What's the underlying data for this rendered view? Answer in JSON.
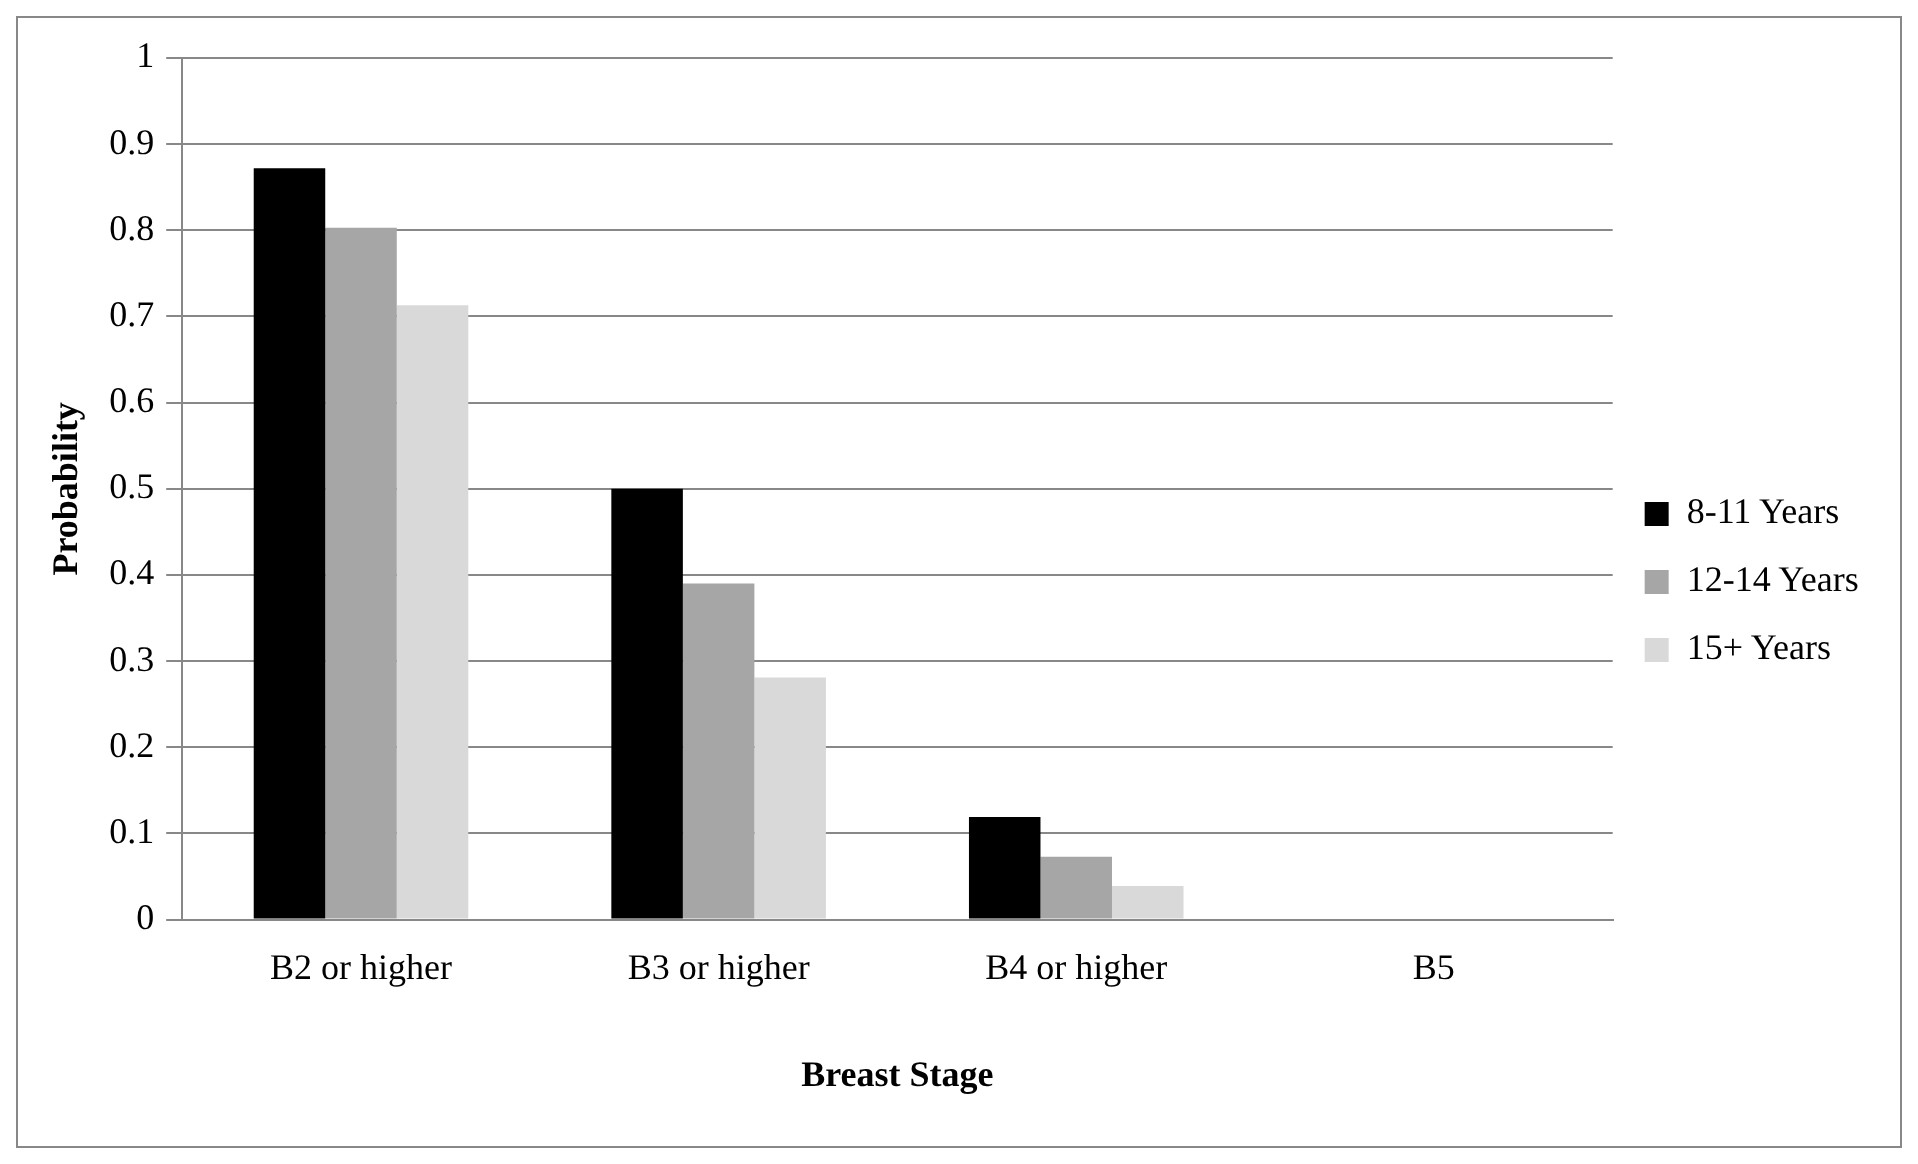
{
  "chart_data": {
    "type": "bar",
    "xlabel": "Breast Stage",
    "ylabel": "Probability",
    "categories": [
      "B2 or higher",
      "B3 or higher",
      "B4 or higher",
      "B5"
    ],
    "series": [
      {
        "name": "8-11 Years",
        "color": "#000000",
        "values": [
          0.872,
          0.5,
          0.119,
          0
        ]
      },
      {
        "name": "12-14 Years",
        "color": "#a6a6a6",
        "values": [
          0.803,
          0.39,
          0.073,
          0
        ]
      },
      {
        "name": "15+ Years",
        "color": "#d9d9d9",
        "values": [
          0.713,
          0.281,
          0.039,
          null
        ]
      }
    ],
    "ylim": [
      0,
      1
    ],
    "yticks": [
      0,
      0.1,
      0.2,
      0.3,
      0.4,
      0.5,
      0.6,
      0.7,
      0.8,
      0.9,
      1
    ],
    "grid": "y",
    "legend": "right"
  }
}
